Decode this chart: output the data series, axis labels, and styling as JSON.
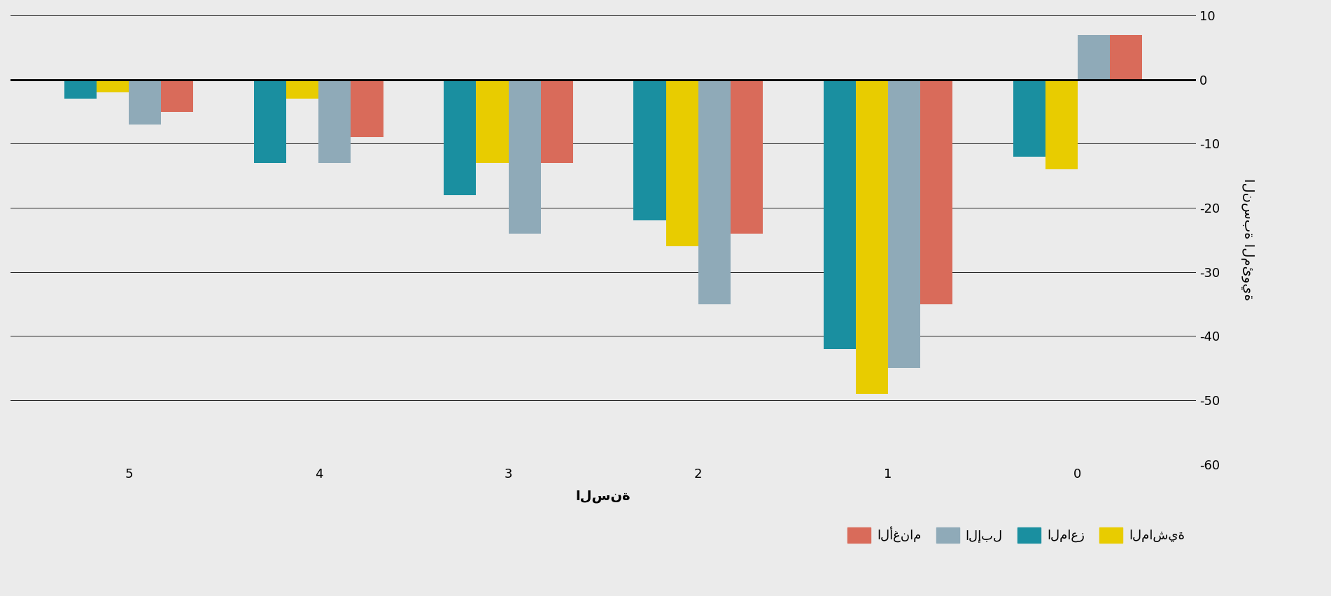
{
  "categories": [
    5,
    4,
    3,
    2,
    1,
    0
  ],
  "series_order": [
    "teal",
    "yellow",
    "gray",
    "red"
  ],
  "series": {
    "teal": {
      "label": "الماعز",
      "color": "#1a8fa0",
      "values": [
        -3.0,
        -13.0,
        -18.0,
        -22.0,
        -42.0,
        -12.0
      ]
    },
    "yellow": {
      "label": "الماشية",
      "color": "#e8cc00",
      "values": [
        -2.0,
        -3.0,
        -13.0,
        -26.0,
        -49.0,
        -14.0
      ]
    },
    "gray": {
      "label": "الإبل",
      "color": "#8faab8",
      "values": [
        -7.0,
        -13.0,
        -24.0,
        -35.0,
        -45.0,
        7.0
      ]
    },
    "red": {
      "label": "الأغنام",
      "color": "#d96b5a",
      "values": [
        -5.0,
        -9.0,
        -13.0,
        -24.0,
        -35.0,
        7.0
      ]
    }
  },
  "xlabel": "السنة",
  "ylabel": "النسبة المئوية",
  "ylim": [
    -60,
    10
  ],
  "yticks": [
    10,
    0,
    -10,
    -20,
    -30,
    -40,
    -50,
    -60
  ],
  "background_color": "#ebebeb",
  "bar_width": 0.17,
  "axis_fontsize": 14,
  "tick_fontsize": 13,
  "legend_fontsize": 13
}
